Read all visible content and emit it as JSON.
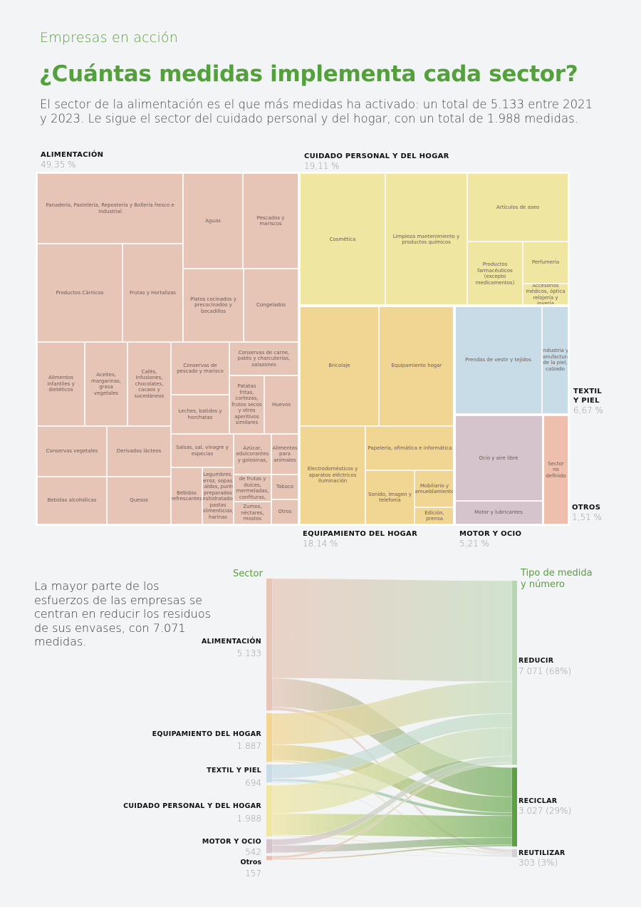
{
  "header": {
    "kicker": "Empresas en acción",
    "title": "¿Cuántas medidas implementa cada sector?",
    "lead": "El sector de la alimentación es el que más medidas ha activado: un total de 5.133 entre 2021 y 2023. Le sigue el sector del cuidado personal y del hogar, con un total de 1.988 medidas."
  },
  "colors": {
    "alimentacion": "#e6c5b7",
    "cuidado": "#efe6a2",
    "equipamiento": "#f1d592",
    "textil": "#c7dce6",
    "motor": "#d6c4cc",
    "otros": "#efbfae",
    "reducir": "#c3dcbf",
    "reciclar": "#6fad59",
    "reutilizar": "#d7d7d7",
    "accent": "#54a03d"
  },
  "chart_data": [
    {
      "type": "treemap",
      "title": "¿Cuántas medidas implementa cada sector?",
      "sectors": [
        {
          "key": "alimentacion",
          "name": "ALIMENTACIÓN",
          "pct": "49,35 %",
          "value": 49.35,
          "subsectors": [
            "Panadería, Pastelería, Repostería y Bollería fresco e Industrial",
            "Aguas",
            "Pescados y mariscos",
            "Productos Cárnicos",
            "Frutas y Hortalizas",
            "Platos cocinados y precocinados y bocadillos",
            "Congelados",
            "Alimentos infantiles y dietéticos",
            "Aceites, margarinas, grasa vegetales",
            "Cafés, Infusiones, chocolates, cacaos y sucedáneos",
            "Conservas de pescado y marisco",
            "Conservas de carne, patés y charcuterías, salazones",
            "Leches, batidos y horchatas",
            "Patatas fritas, cortezas, frutos secos y otros aperitivos similares",
            "Huevos",
            "Conservas vegetales",
            "Derivados lácteos",
            "Salsas, sal, vinagre y especias",
            "Azúcar, edulcorantes y golosinas,",
            "Alimentos para animales",
            "Bebidas alcohólicas",
            "Quesos",
            "Bebidas refrescantes",
            "Legumbres, arroz, sopas, caldos, purés preparados deshidratados, pastas alimenticias, harinas",
            "Conservas de frutas y dulces, mermeladas, confituras, miel",
            "Tabaco",
            "Zumos, néctares, mostos",
            "Otros"
          ]
        },
        {
          "key": "cuidado",
          "name": "CUIDADO PERSONAL Y DEL HOGAR",
          "pct": "19,11 %",
          "value": 19.11,
          "subsectors": [
            "Cosmética",
            "Limpieza mantenimiento y productos químicos",
            "Artículos de aseo",
            "Productos farmacéuticos (excepto medicamentos)",
            "Perfumería",
            "Accesorios médicos, óptica relojería y joyería"
          ]
        },
        {
          "key": "equipamiento",
          "name": "EQUIPAMIENTO DEL HOGAR",
          "pct": "18,14 %",
          "value": 18.14,
          "subsectors": [
            "Bricolaje",
            "Equipamiento hogar",
            "Electrodomésticos y aparatos eléctricos iluminación",
            "Papelería, ofimática e informática",
            "Sonido, imagen y telefonía",
            "Mobiliario y amueblamiento",
            "Edición, prensa"
          ]
        },
        {
          "key": "textil",
          "name": "TEXTIL Y PIEL",
          "pct": "6,67 %",
          "value": 6.67,
          "subsectors": [
            "Prendas de vestir y tejidos",
            "Industria y manufacturas de la piel, calzado"
          ]
        },
        {
          "key": "motor",
          "name": "MOTOR Y OCIO",
          "pct": "5,21 %",
          "value": 5.21,
          "subsectors": [
            "Ocio y aire libre",
            "Motor y lubricantes"
          ]
        },
        {
          "key": "otros",
          "name": "OTROS",
          "pct": "1,51 %",
          "value": 1.51,
          "subsectors": [
            "Sector no definido"
          ]
        }
      ]
    },
    {
      "type": "sankey",
      "intro": "La mayor parte de los esfuerzos de las empresas se centran en reducir los residuos de sus envases, con 7.071 medidas.",
      "source_heading": "Sector",
      "target_heading": "Tipo de medida y número",
      "sources": [
        {
          "key": "alimentacion",
          "name": "ALIMENTACIÓN",
          "value": 5133,
          "label_value": "5.133"
        },
        {
          "key": "equipamiento",
          "name": "EQUIPAMIENTO DEL HOGAR",
          "value": 1887,
          "label_value": "1.887"
        },
        {
          "key": "textil",
          "name": "TEXTIL Y PIEL",
          "value": 694,
          "label_value": "694"
        },
        {
          "key": "cuidado",
          "name": "CUIDADO PERSONAL  Y DEL HOGAR",
          "value": 1988,
          "label_value": "1.988"
        },
        {
          "key": "motor",
          "name": "MOTOR Y OCIO",
          "value": 542,
          "label_value": "542"
        },
        {
          "key": "otros",
          "name": "Otros",
          "value": 157,
          "label_value": "157"
        }
      ],
      "targets": [
        {
          "key": "reducir",
          "name": "REDUCIR",
          "value": 7071,
          "label_value": "7.071 (68%)"
        },
        {
          "key": "reciclar",
          "name": "RECICLAR",
          "value": 3027,
          "label_value": "3.027 (29%)"
        },
        {
          "key": "reutilizar",
          "name": "REUTILIZAR",
          "value": 303,
          "label_value": "303 (3%)"
        }
      ],
      "flows": [
        {
          "source": "alimentacion",
          "target": "reducir",
          "value": 3880
        },
        {
          "source": "alimentacion",
          "target": "reciclar",
          "value": 1120
        },
        {
          "source": "alimentacion",
          "target": "reutilizar",
          "value": 133
        },
        {
          "source": "equipamiento",
          "target": "reducir",
          "value": 1220
        },
        {
          "source": "equipamiento",
          "target": "reciclar",
          "value": 610
        },
        {
          "source": "equipamiento",
          "target": "reutilizar",
          "value": 57
        },
        {
          "source": "textil",
          "target": "reducir",
          "value": 540
        },
        {
          "source": "textil",
          "target": "reciclar",
          "value": 120
        },
        {
          "source": "textil",
          "target": "reutilizar",
          "value": 34
        },
        {
          "source": "cuidado",
          "target": "reducir",
          "value": 1100
        },
        {
          "source": "cuidado",
          "target": "reciclar",
          "value": 840
        },
        {
          "source": "cuidado",
          "target": "reutilizar",
          "value": 48
        },
        {
          "source": "motor",
          "target": "reducir",
          "value": 240
        },
        {
          "source": "motor",
          "target": "reciclar",
          "value": 280
        },
        {
          "source": "motor",
          "target": "reutilizar",
          "value": 22
        },
        {
          "source": "otros",
          "target": "reducir",
          "value": 91
        },
        {
          "source": "otros",
          "target": "reciclar",
          "value": 57
        },
        {
          "source": "otros",
          "target": "reutilizar",
          "value": 9
        }
      ]
    }
  ]
}
